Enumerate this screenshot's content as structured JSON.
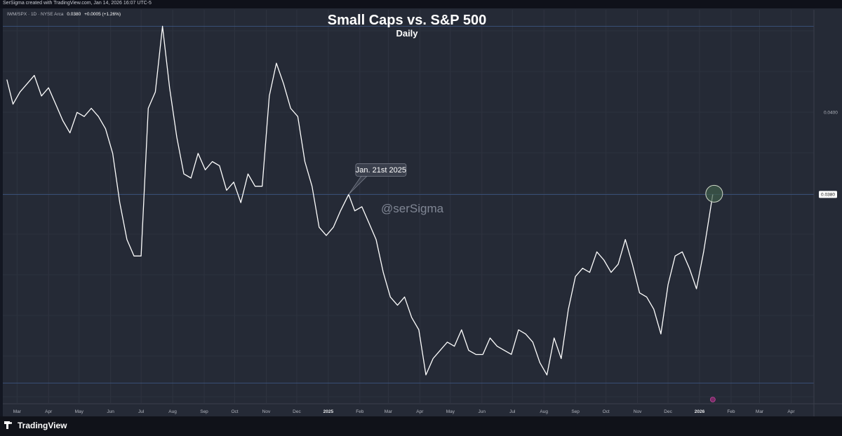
{
  "header": {
    "credit": "SerSigma created with TradingView.com, Jan 14, 2026 16:07 UTC-5"
  },
  "legend": {
    "symbol": "IWM/SPX · 1D · NYSE Arca",
    "last_value": "0.0380",
    "change": "+0.0005 (+1.26%)"
  },
  "footer": {
    "logo_text": "TradingView"
  },
  "colors": {
    "background": "#131722",
    "panel": "#252a36",
    "line": "#ffffff",
    "highlight_circle": "#3e5e4a"
  },
  "chart_data": {
    "type": "line",
    "title": "Small Caps vs. S&P 500",
    "subtitle": "Daily",
    "series": [
      {
        "name": "IWM/SPX",
        "x": [
          "2024-02-20",
          "2024-02-26",
          "2024-03-04",
          "2024-03-11",
          "2024-03-18",
          "2024-03-25",
          "2024-04-01",
          "2024-04-08",
          "2024-04-15",
          "2024-04-22",
          "2024-04-29",
          "2024-05-06",
          "2024-05-13",
          "2024-05-20",
          "2024-05-27",
          "2024-06-03",
          "2024-06-10",
          "2024-06-17",
          "2024-06-24",
          "2024-07-01",
          "2024-07-08",
          "2024-07-15",
          "2024-07-22",
          "2024-07-29",
          "2024-08-05",
          "2024-08-12",
          "2024-08-19",
          "2024-08-26",
          "2024-09-02",
          "2024-09-09",
          "2024-09-16",
          "2024-09-23",
          "2024-09-30",
          "2024-10-07",
          "2024-10-14",
          "2024-10-21",
          "2024-10-28",
          "2024-11-04",
          "2024-11-11",
          "2024-11-18",
          "2024-11-25",
          "2024-12-02",
          "2024-12-09",
          "2024-12-16",
          "2024-12-23",
          "2024-12-30",
          "2025-01-06",
          "2025-01-13",
          "2025-01-21",
          "2025-01-27",
          "2025-02-03",
          "2025-02-10",
          "2025-02-17",
          "2025-02-24",
          "2025-03-03",
          "2025-03-10",
          "2025-03-17",
          "2025-03-24",
          "2025-03-31",
          "2025-04-07",
          "2025-04-14",
          "2025-04-21",
          "2025-04-28",
          "2025-05-05",
          "2025-05-12",
          "2025-05-19",
          "2025-05-26",
          "2025-06-02",
          "2025-06-09",
          "2025-06-16",
          "2025-06-23",
          "2025-06-30",
          "2025-07-07",
          "2025-07-14",
          "2025-07-21",
          "2025-07-28",
          "2025-08-04",
          "2025-08-11",
          "2025-08-18",
          "2025-08-25",
          "2025-09-01",
          "2025-09-08",
          "2025-09-15",
          "2025-09-22",
          "2025-09-29",
          "2025-10-06",
          "2025-10-13",
          "2025-10-20",
          "2025-10-27",
          "2025-11-03",
          "2025-11-10",
          "2025-11-17",
          "2025-11-24",
          "2025-12-01",
          "2025-12-08",
          "2025-12-15",
          "2025-12-22",
          "2025-12-29",
          "2026-01-05",
          "2026-01-14"
        ],
        "values": [
          0.0408,
          0.0402,
          0.0405,
          0.0407,
          0.0409,
          0.0404,
          0.0406,
          0.0402,
          0.0398,
          0.0395,
          0.04,
          0.0399,
          0.0401,
          0.0399,
          0.0396,
          0.039,
          0.0378,
          0.0369,
          0.0365,
          0.0365,
          0.0401,
          0.0405,
          0.0421,
          0.0406,
          0.0394,
          0.0385,
          0.0384,
          0.039,
          0.0386,
          0.0388,
          0.0387,
          0.0381,
          0.0383,
          0.0378,
          0.0385,
          0.0382,
          0.0382,
          0.0404,
          0.0412,
          0.0407,
          0.0401,
          0.0399,
          0.0388,
          0.0382,
          0.0372,
          0.037,
          0.0372,
          0.0376,
          0.038,
          0.0376,
          0.0377,
          0.0373,
          0.0369,
          0.0361,
          0.0355,
          0.0353,
          0.0355,
          0.035,
          0.0347,
          0.0336,
          0.034,
          0.0342,
          0.0344,
          0.0343,
          0.0347,
          0.0342,
          0.0341,
          0.0341,
          0.0345,
          0.0343,
          0.0342,
          0.0341,
          0.0347,
          0.0346,
          0.0344,
          0.0339,
          0.0336,
          0.0345,
          0.034,
          0.0352,
          0.036,
          0.0362,
          0.0361,
          0.0366,
          0.0364,
          0.0361,
          0.0363,
          0.0369,
          0.0363,
          0.0356,
          0.0355,
          0.0352,
          0.0346,
          0.0358,
          0.0365,
          0.0366,
          0.0362,
          0.0357,
          0.0366,
          0.038
        ]
      }
    ],
    "ylim": [
      0.033,
      0.0425
    ],
    "y_ticks": [
      {
        "value": 0.04,
        "label": "0.0400"
      }
    ],
    "price_label": {
      "value": 0.038,
      "label": "0.0380"
    },
    "x_ticks": [
      {
        "date": "2024-03-01",
        "label": "Mar",
        "bold": false
      },
      {
        "date": "2024-04-01",
        "label": "Apr",
        "bold": false
      },
      {
        "date": "2024-05-01",
        "label": "May",
        "bold": false
      },
      {
        "date": "2024-06-01",
        "label": "Jun",
        "bold": false
      },
      {
        "date": "2024-07-01",
        "label": "Jul",
        "bold": false
      },
      {
        "date": "2024-08-01",
        "label": "Aug",
        "bold": false
      },
      {
        "date": "2024-09-01",
        "label": "Sep",
        "bold": false
      },
      {
        "date": "2024-10-01",
        "label": "Oct",
        "bold": false
      },
      {
        "date": "2024-11-01",
        "label": "Nov",
        "bold": false
      },
      {
        "date": "2024-12-01",
        "label": "Dec",
        "bold": false
      },
      {
        "date": "2025-01-01",
        "label": "2025",
        "bold": true
      },
      {
        "date": "2025-02-01",
        "label": "Feb",
        "bold": false
      },
      {
        "date": "2025-03-01",
        "label": "Mar",
        "bold": false
      },
      {
        "date": "2025-04-01",
        "label": "Apr",
        "bold": false
      },
      {
        "date": "2025-05-01",
        "label": "May",
        "bold": false
      },
      {
        "date": "2025-06-01",
        "label": "Jun",
        "bold": false
      },
      {
        "date": "2025-07-01",
        "label": "Jul",
        "bold": false
      },
      {
        "date": "2025-08-01",
        "label": "Aug",
        "bold": false
      },
      {
        "date": "2025-09-01",
        "label": "Sep",
        "bold": false
      },
      {
        "date": "2025-10-01",
        "label": "Oct",
        "bold": false
      },
      {
        "date": "2025-11-01",
        "label": "Nov",
        "bold": false
      },
      {
        "date": "2025-12-01",
        "label": "Dec",
        "bold": false
      },
      {
        "date": "2026-01-01",
        "label": "2026",
        "bold": true
      },
      {
        "date": "2026-02-01",
        "label": "Feb",
        "bold": false
      },
      {
        "date": "2026-03-01",
        "label": "Mar",
        "bold": false
      },
      {
        "date": "2026-04-01",
        "label": "Apr",
        "bold": false
      }
    ],
    "x_range": [
      "2024-02-16",
      "2026-04-20"
    ],
    "annotations": [
      {
        "type": "callout",
        "text": "Jan. 21st 2025",
        "date": "2025-01-21",
        "value": 0.038
      },
      {
        "type": "circle",
        "date": "2026-01-14",
        "value": 0.038
      }
    ],
    "horizontal_lines": [
      0.0421,
      0.038,
      0.0334
    ],
    "watermark": "@serSigma",
    "grid": true
  }
}
